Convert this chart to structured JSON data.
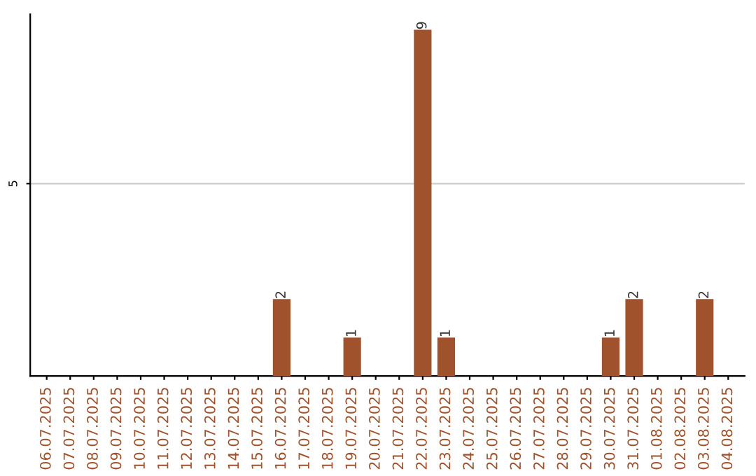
{
  "chart_data": {
    "type": "bar",
    "categories": [
      "06.07.2025",
      "07.07.2025",
      "08.07.2025",
      "09.07.2025",
      "10.07.2025",
      "11.07.2025",
      "12.07.2025",
      "13.07.2025",
      "14.07.2025",
      "15.07.2025",
      "16.07.2025",
      "17.07.2025",
      "18.07.2025",
      "19.07.2025",
      "20.07.2025",
      "21.07.2025",
      "22.07.2025",
      "23.07.2025",
      "24.07.2025",
      "25.07.2025",
      "26.07.2025",
      "27.07.2025",
      "28.07.2025",
      "29.07.2025",
      "30.07.2025",
      "31.07.2025",
      "01.08.2025",
      "02.08.2025",
      "03.08.2025",
      "04.08.2025"
    ],
    "values": [
      0,
      0,
      0,
      0,
      0,
      0,
      0,
      0,
      0,
      0,
      2,
      0,
      0,
      1,
      0,
      0,
      9,
      1,
      0,
      0,
      0,
      0,
      0,
      0,
      1,
      2,
      0,
      0,
      2,
      0
    ],
    "value_labels": [
      null,
      null,
      null,
      null,
      null,
      null,
      null,
      null,
      null,
      null,
      "2",
      null,
      null,
      "1",
      null,
      null,
      "9",
      "1",
      null,
      null,
      null,
      null,
      null,
      null,
      "1",
      "2",
      null,
      null,
      "2",
      null
    ],
    "color": "#a0522d",
    "ylim": [
      0,
      9.4
    ],
    "yticks": [
      5
    ],
    "grid": "y"
  }
}
